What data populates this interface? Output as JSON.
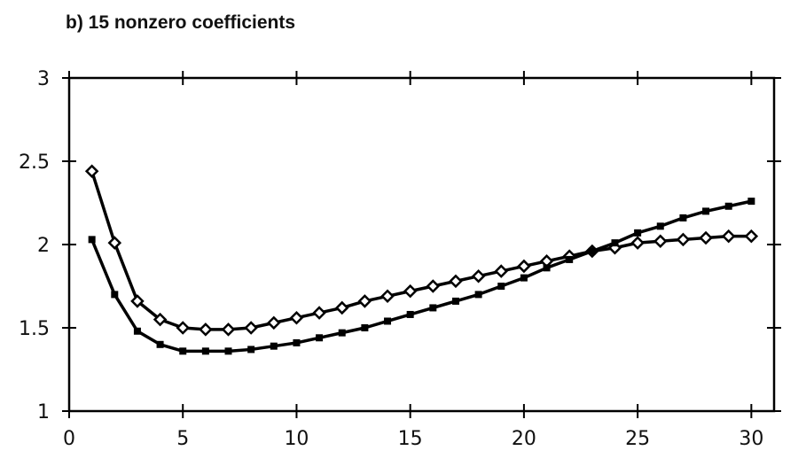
{
  "chart_data": {
    "type": "line",
    "title": "b) 15 nonzero coefficients",
    "xlabel": "",
    "ylabel": "",
    "xlim": [
      0,
      31
    ],
    "ylim": [
      1,
      3
    ],
    "xticks": [
      "0",
      "5",
      "10",
      "15",
      "20",
      "25",
      "30"
    ],
    "yticks": [
      "1",
      "1.5",
      "2",
      "2.5",
      "3"
    ],
    "grid": false,
    "x": [
      1,
      2,
      3,
      4,
      5,
      6,
      7,
      8,
      9,
      10,
      11,
      12,
      13,
      14,
      15,
      16,
      17,
      18,
      19,
      20,
      21,
      22,
      23,
      24,
      25,
      26,
      27,
      28,
      29,
      30
    ],
    "series": [
      {
        "marker": "diamond-open",
        "values": [
          2.44,
          2.01,
          1.66,
          1.55,
          1.5,
          1.49,
          1.49,
          1.5,
          1.53,
          1.56,
          1.59,
          1.62,
          1.66,
          1.69,
          1.72,
          1.75,
          1.78,
          1.81,
          1.84,
          1.87,
          1.9,
          1.93,
          1.96,
          1.98,
          2.01,
          2.02,
          2.03,
          2.04,
          2.05,
          2.05
        ]
      },
      {
        "marker": "square-filled",
        "values": [
          2.03,
          1.7,
          1.48,
          1.4,
          1.36,
          1.36,
          1.36,
          1.37,
          1.39,
          1.41,
          1.44,
          1.47,
          1.5,
          1.54,
          1.58,
          1.62,
          1.66,
          1.7,
          1.75,
          1.8,
          1.86,
          1.91,
          1.96,
          2.01,
          2.07,
          2.11,
          2.16,
          2.2,
          2.23,
          2.26
        ]
      }
    ]
  }
}
